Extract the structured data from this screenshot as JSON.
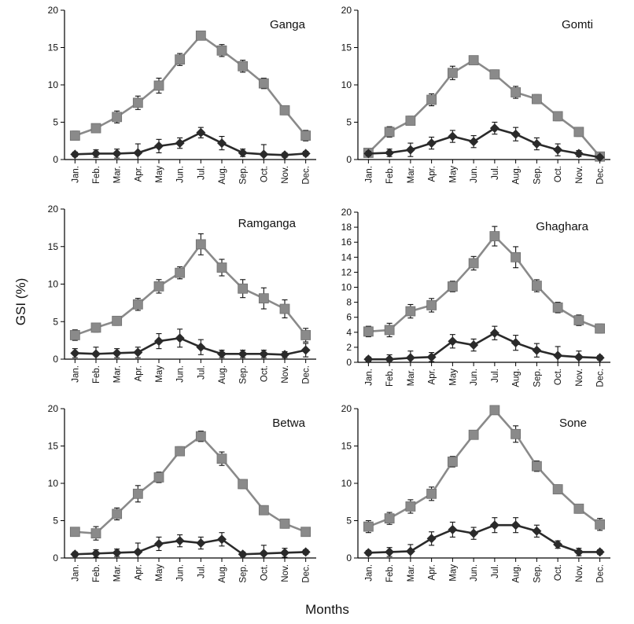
{
  "figure": {
    "ylabel": "GSI (%)",
    "xlabel": "Months"
  },
  "colors": {
    "female": "#8a8a8a",
    "male": "#2a2a2a",
    "axis": "#000000"
  },
  "chart_data": [
    {
      "type": "line",
      "title": "Ganga",
      "ylim": [
        0,
        20
      ],
      "yticks": [
        0,
        5,
        10,
        15,
        20
      ],
      "categories": [
        "Jan.",
        "Feb.",
        "Mar.",
        "Apr.",
        "May",
        "Jun.",
        "Jul.",
        "Aug.",
        "Sep.",
        "Oct.",
        "Nov.",
        "Dec."
      ],
      "series": [
        {
          "name": "gray-square",
          "marker": "square",
          "values": [
            3.2,
            4.2,
            5.7,
            7.6,
            9.9,
            13.4,
            16.6,
            14.6,
            12.5,
            10.2,
            6.6,
            3.2
          ],
          "errors": [
            0.6,
            0.4,
            0.8,
            0.9,
            1.0,
            0.8,
            0.5,
            0.8,
            0.8,
            0.7,
            0.6,
            0.7
          ]
        },
        {
          "name": "dark-diamond",
          "marker": "diamond",
          "values": [
            0.7,
            0.8,
            0.8,
            0.9,
            1.8,
            2.2,
            3.6,
            2.2,
            0.9,
            0.7,
            0.6,
            0.8
          ],
          "errors": [
            0.3,
            0.5,
            0.6,
            1.2,
            0.9,
            0.7,
            0.7,
            0.9,
            0.5,
            1.3,
            0.3,
            0.3
          ]
        }
      ]
    },
    {
      "type": "line",
      "title": "Gomti",
      "ylim": [
        0,
        20
      ],
      "yticks": [
        0,
        5,
        10,
        15,
        20
      ],
      "categories": [
        "Jan.",
        "Feb.",
        "Mar.",
        "Apr.",
        "May",
        "Jun.",
        "Jul.",
        "Aug.",
        "Sep.",
        "Oct.",
        "Nov.",
        "Dec."
      ],
      "series": [
        {
          "name": "gray-square",
          "marker": "square",
          "values": [
            0.9,
            3.7,
            5.2,
            8.0,
            11.6,
            13.3,
            11.4,
            9.0,
            8.1,
            5.8,
            3.7,
            0.4
          ],
          "errors": [
            0.3,
            0.7,
            0.6,
            0.8,
            0.9,
            0.5,
            0.6,
            0.8,
            0.6,
            0.6,
            0.6,
            0.3
          ]
        },
        {
          "name": "dark-diamond",
          "marker": "diamond",
          "values": [
            0.8,
            0.9,
            1.3,
            2.2,
            3.1,
            2.4,
            4.2,
            3.4,
            2.1,
            1.3,
            0.8,
            0.3
          ],
          "errors": [
            0.3,
            0.5,
            0.9,
            0.8,
            0.8,
            0.8,
            0.8,
            0.9,
            0.8,
            0.8,
            0.4,
            0.2
          ]
        }
      ]
    },
    {
      "type": "line",
      "title": "Ramganga",
      "ylim": [
        0,
        20
      ],
      "yticks": [
        0,
        5,
        10,
        15,
        20
      ],
      "categories": [
        "Jan.",
        "Feb.",
        "Mar.",
        "Apr.",
        "May",
        "Jun.",
        "Jul.",
        "Aug.",
        "Sep.",
        "Oct.",
        "Nov.",
        "Dec."
      ],
      "series": [
        {
          "name": "gray-square",
          "marker": "square",
          "values": [
            3.2,
            4.2,
            5.1,
            7.3,
            9.7,
            11.5,
            15.3,
            12.2,
            9.4,
            8.1,
            6.7,
            3.2
          ],
          "errors": [
            0.7,
            0.6,
            0.6,
            0.8,
            0.9,
            0.8,
            1.4,
            1.1,
            1.2,
            1.4,
            1.2,
            0.9
          ]
        },
        {
          "name": "dark-diamond",
          "marker": "diamond",
          "values": [
            0.8,
            0.7,
            0.8,
            0.9,
            2.4,
            2.8,
            1.6,
            0.7,
            0.7,
            0.7,
            0.6,
            1.2
          ],
          "errors": [
            0.6,
            0.9,
            0.6,
            0.7,
            1.0,
            1.2,
            1.0,
            0.5,
            0.5,
            0.5,
            0.4,
            0.9
          ]
        }
      ]
    },
    {
      "type": "line",
      "title": "Ghaghara",
      "ylim": [
        0,
        20
      ],
      "yticks": [
        0,
        2,
        4,
        6,
        8,
        10,
        12,
        14,
        16,
        18,
        20
      ],
      "categories": [
        "Jan.",
        "Feb.",
        "Mar.",
        "Apr.",
        "May",
        "Jun.",
        "Jul.",
        "Aug.",
        "Sep.",
        "Oct.",
        "Nov.",
        "Dec."
      ],
      "series": [
        {
          "name": "gray-square",
          "marker": "square",
          "values": [
            4.1,
            4.3,
            6.8,
            7.6,
            10.1,
            13.2,
            16.8,
            14.0,
            10.2,
            7.3,
            5.6,
            4.5
          ],
          "errors": [
            0.7,
            0.9,
            0.9,
            0.9,
            0.7,
            0.9,
            1.3,
            1.4,
            0.8,
            0.7,
            0.7,
            0.6
          ]
        },
        {
          "name": "dark-diamond",
          "marker": "diamond",
          "values": [
            0.4,
            0.4,
            0.6,
            0.7,
            2.8,
            2.3,
            3.9,
            2.6,
            1.6,
            0.9,
            0.7,
            0.6
          ],
          "errors": [
            0.3,
            0.6,
            0.9,
            0.6,
            0.9,
            0.8,
            0.9,
            1.0,
            0.9,
            1.2,
            0.8,
            0.3
          ]
        }
      ]
    },
    {
      "type": "line",
      "title": "Betwa",
      "ylim": [
        0,
        20
      ],
      "yticks": [
        0,
        5,
        10,
        15,
        20
      ],
      "categories": [
        "Jan.",
        "Feb.",
        "Mar.",
        "Apr.",
        "May",
        "Jun.",
        "Jul.",
        "Aug.",
        "Sep.",
        "Oct.",
        "Nov.",
        "Dec."
      ],
      "series": [
        {
          "name": "gray-square",
          "marker": "square",
          "values": [
            3.5,
            3.3,
            5.9,
            8.6,
            10.8,
            14.3,
            16.3,
            13.3,
            9.9,
            6.4,
            4.6,
            3.5
          ],
          "errors": [
            0.6,
            0.9,
            0.8,
            1.1,
            0.7,
            0.6,
            0.7,
            0.9,
            0.6,
            0.6,
            0.6,
            0.6
          ]
        },
        {
          "name": "dark-diamond",
          "marker": "diamond",
          "values": [
            0.5,
            0.6,
            0.7,
            0.8,
            1.9,
            2.3,
            2.0,
            2.5,
            0.5,
            0.6,
            0.7,
            0.8
          ],
          "errors": [
            0.3,
            0.5,
            0.5,
            1.2,
            0.9,
            0.8,
            0.8,
            0.9,
            0.3,
            1.1,
            0.6,
            0.3
          ]
        }
      ]
    },
    {
      "type": "line",
      "title": "Sone",
      "ylim": [
        0,
        20
      ],
      "yticks": [
        0,
        5,
        10,
        15,
        20
      ],
      "categories": [
        "Jan.",
        "Feb.",
        "Mar.",
        "Apr.",
        "May",
        "Jun.",
        "Jul.",
        "Aug.",
        "Sep.",
        "Oct.",
        "Nov.",
        "Dec."
      ],
      "series": [
        {
          "name": "gray-square",
          "marker": "square",
          "values": [
            4.2,
            5.3,
            6.9,
            8.6,
            12.9,
            16.5,
            19.8,
            16.6,
            12.3,
            9.2,
            6.6,
            4.5
          ],
          "errors": [
            0.8,
            0.8,
            0.9,
            0.9,
            0.7,
            0.6,
            0.4,
            1.1,
            0.7,
            0.6,
            0.6,
            0.8
          ]
        },
        {
          "name": "dark-diamond",
          "marker": "diamond",
          "values": [
            0.7,
            0.8,
            0.9,
            2.6,
            3.8,
            3.3,
            4.4,
            4.4,
            3.6,
            1.8,
            0.8,
            0.8
          ],
          "errors": [
            0.3,
            0.6,
            0.9,
            0.9,
            1.0,
            0.8,
            1.0,
            1.0,
            0.8,
            0.5,
            0.5,
            0.3
          ]
        }
      ]
    }
  ]
}
